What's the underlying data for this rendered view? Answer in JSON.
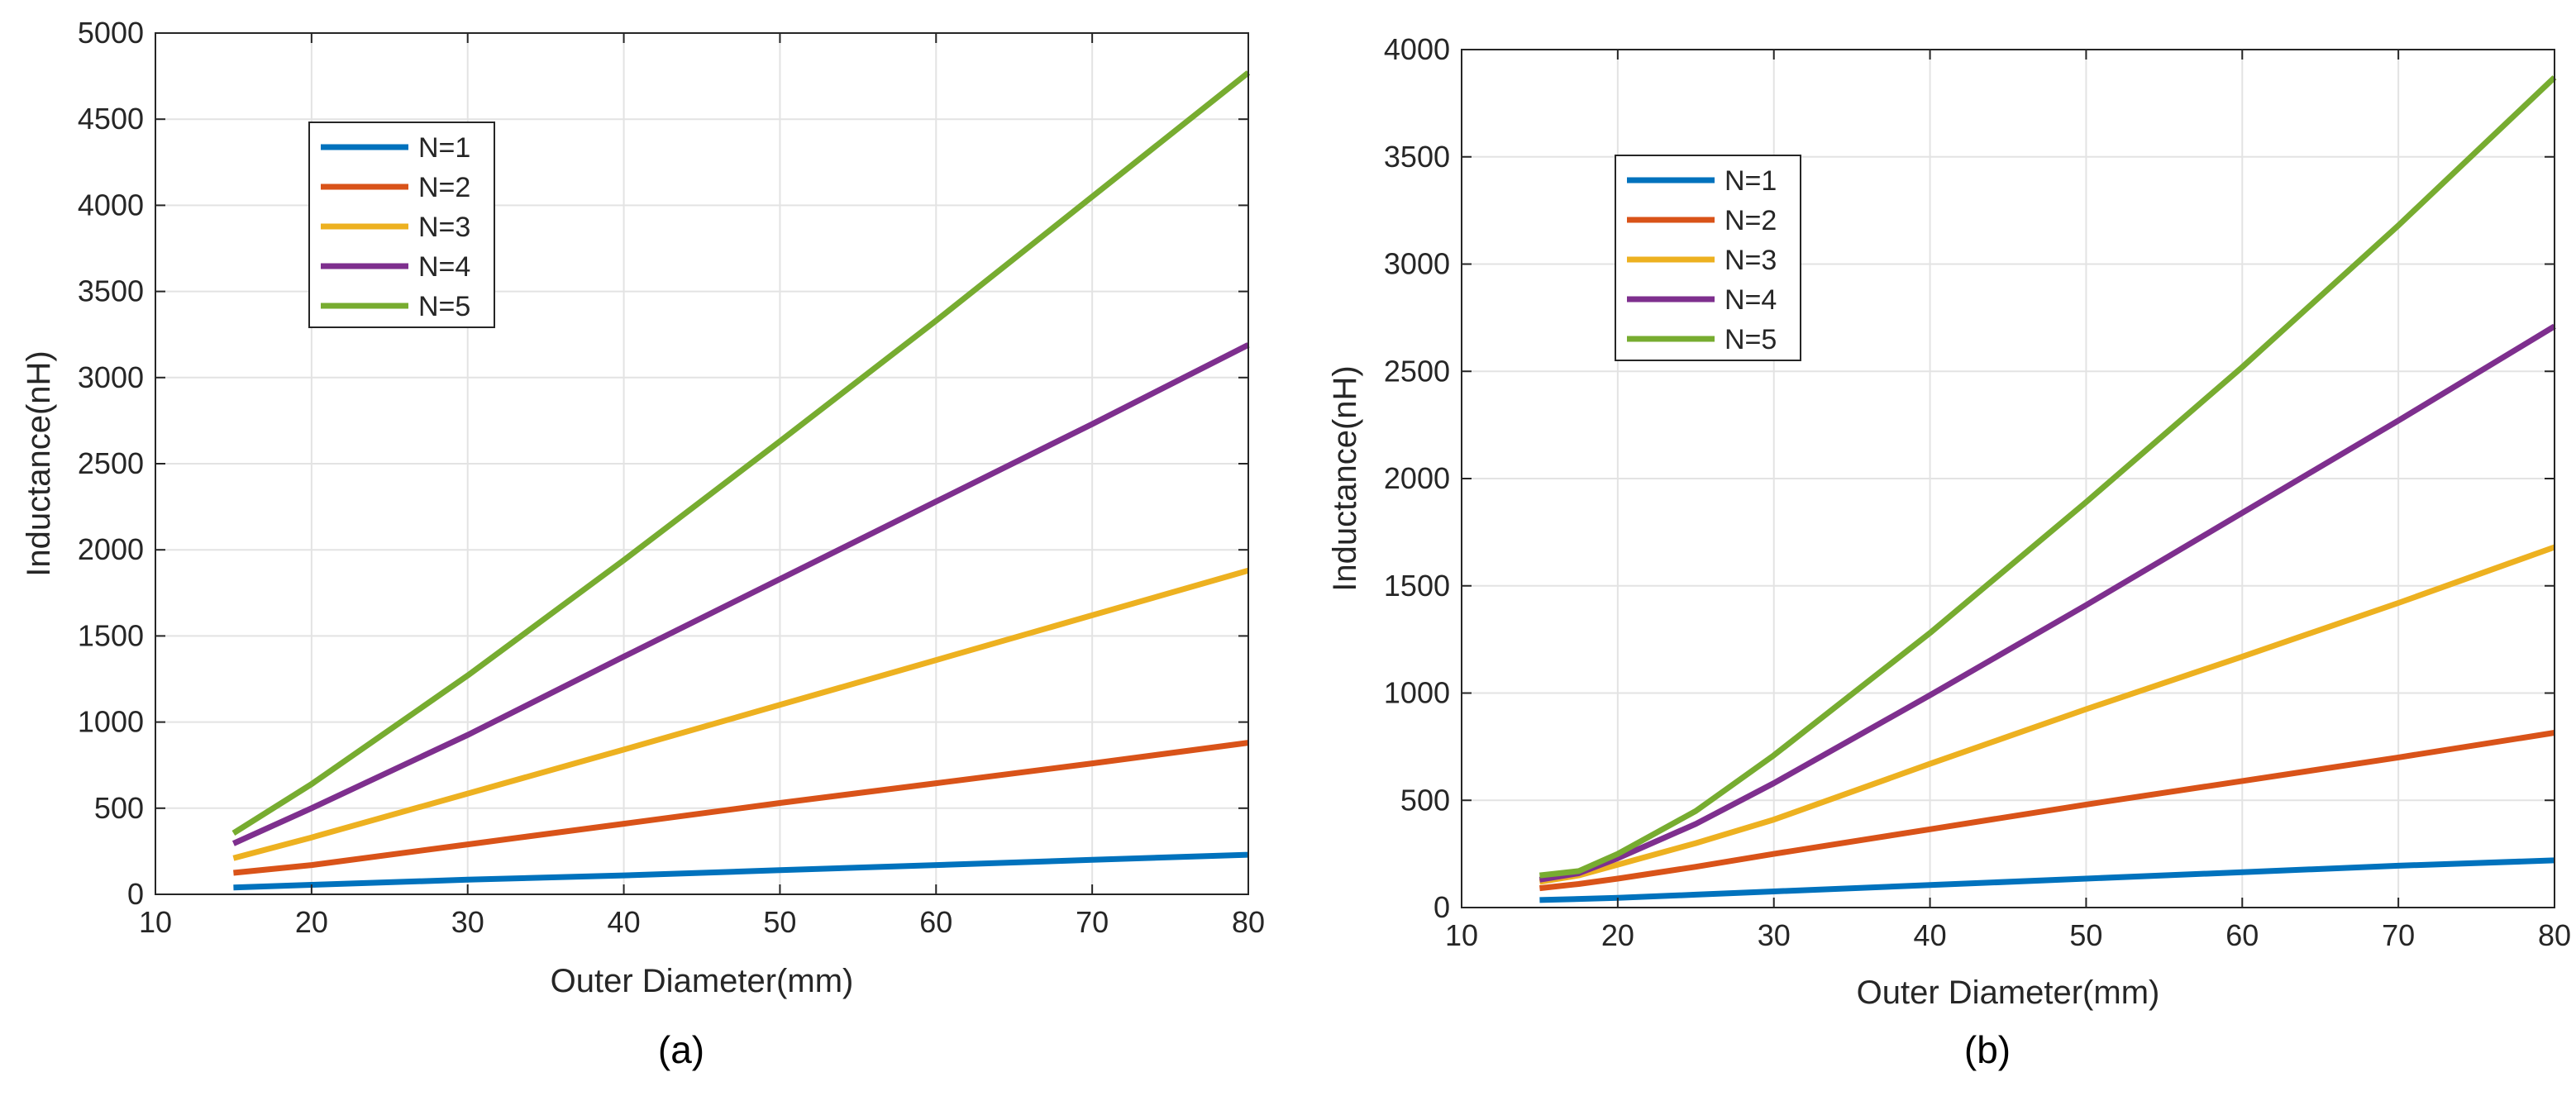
{
  "colors": {
    "N1": "#0072BD",
    "N2": "#D95319",
    "N3": "#EDB120",
    "N4": "#7E2F8E",
    "N5": "#77AC30",
    "grid": "#e3e3e3",
    "axis": "#262626"
  },
  "chart_data": [
    {
      "type": "line",
      "caption": "(a)",
      "xlabel": "Outer Diameter(mm)",
      "ylabel": "Inductance(nH)",
      "xlim": [
        10,
        80
      ],
      "ylim": [
        0,
        5000
      ],
      "xticks": [
        "10",
        "20",
        "30",
        "40",
        "50",
        "60",
        "70",
        "80"
      ],
      "yticks": [
        "0",
        "500",
        "1000",
        "1500",
        "2000",
        "2500",
        "3000",
        "3500",
        "4000",
        "4500",
        "5000"
      ],
      "grid": true,
      "legend_position": "upper-left",
      "x": [
        15,
        20,
        30,
        40,
        50,
        60,
        70,
        80
      ],
      "series": [
        {
          "name": "N=1",
          "color_key": "N1",
          "values": [
            40,
            55,
            85,
            110,
            140,
            170,
            200,
            230
          ]
        },
        {
          "name": "N=2",
          "color_key": "N2",
          "values": [
            125,
            170,
            290,
            410,
            530,
            645,
            760,
            880
          ]
        },
        {
          "name": "N=3",
          "color_key": "N3",
          "values": [
            210,
            330,
            585,
            840,
            1100,
            1360,
            1620,
            1880
          ]
        },
        {
          "name": "N=4",
          "color_key": "N4",
          "values": [
            295,
            500,
            925,
            1380,
            1830,
            2280,
            2730,
            3190
          ]
        },
        {
          "name": "N=5",
          "color_key": "N5",
          "values": [
            355,
            640,
            1270,
            1940,
            2630,
            3330,
            4050,
            4770
          ]
        }
      ]
    },
    {
      "type": "line",
      "caption": "(b)",
      "xlabel": "Outer Diameter(mm)",
      "ylabel": "Inductance(nH)",
      "xlim": [
        10,
        80
      ],
      "ylim": [
        0,
        4000
      ],
      "xticks": [
        "10",
        "20",
        "30",
        "40",
        "50",
        "60",
        "70",
        "80"
      ],
      "yticks": [
        "0",
        "500",
        "1000",
        "1500",
        "2000",
        "2500",
        "3000",
        "3500",
        "4000"
      ],
      "grid": true,
      "legend_position": "upper-left",
      "x": [
        15,
        17.5,
        20,
        25,
        30,
        40,
        50,
        60,
        70,
        80
      ],
      "series": [
        {
          "name": "N=1",
          "color_key": "N1",
          "values": [
            35,
            40,
            45,
            60,
            75,
            105,
            135,
            165,
            195,
            220
          ]
        },
        {
          "name": "N=2",
          "color_key": "N2",
          "values": [
            90,
            110,
            135,
            190,
            250,
            365,
            480,
            590,
            700,
            815
          ]
        },
        {
          "name": "N=3",
          "color_key": "N3",
          "values": [
            120,
            150,
            200,
            300,
            410,
            670,
            925,
            1170,
            1420,
            1680
          ]
        },
        {
          "name": "N=4",
          "color_key": "N4",
          "values": [
            130,
            160,
            230,
            390,
            580,
            990,
            1410,
            1840,
            2270,
            2710
          ]
        },
        {
          "name": "N=5",
          "color_key": "N5",
          "values": [
            150,
            170,
            250,
            450,
            710,
            1280,
            1890,
            2520,
            3180,
            3870
          ]
        }
      ]
    }
  ]
}
